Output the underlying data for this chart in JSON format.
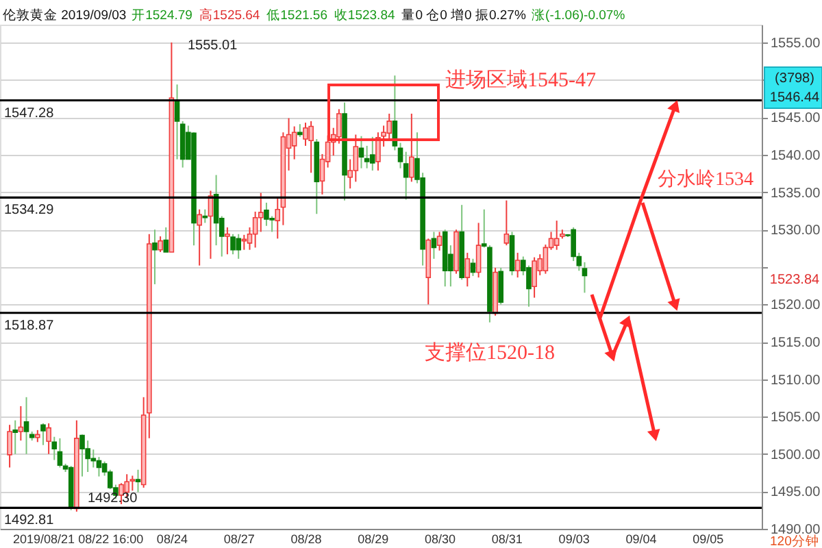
{
  "chart_data": {
    "type": "candlestick",
    "categories": [
      null,
      null,
      null,
      null,
      null,
      null,
      "2019/08/21",
      null,
      null,
      null,
      null,
      null,
      null,
      null,
      null,
      null,
      null,
      null,
      "08/22 16:00",
      null,
      null,
      null,
      null,
      null,
      null,
      null,
      null,
      null,
      null,
      "08/24",
      null,
      null,
      null,
      null,
      null,
      null,
      null,
      null,
      null,
      null,
      null,
      "08/27",
      null,
      null,
      null,
      null,
      null,
      null,
      null,
      null,
      null,
      null,
      null,
      "08/28",
      null,
      null,
      null,
      null,
      null,
      null,
      null,
      null,
      null,
      null,
      null,
      "08/29",
      null,
      null,
      null,
      null,
      null,
      null,
      null,
      null,
      null,
      null,
      null,
      "08/30",
      null,
      null,
      null,
      null,
      null,
      null,
      null,
      null,
      null,
      null,
      null,
      "08/31",
      null,
      null,
      null,
      null,
      null,
      null,
      null,
      null,
      null,
      null,
      null,
      "09/03",
      null,
      null,
      null,
      null,
      null,
      null,
      null,
      null,
      null,
      null,
      null,
      "09/04",
      null,
      null,
      null,
      null,
      null,
      null,
      null,
      null,
      null,
      null,
      null,
      "09/05",
      null,
      null,
      null,
      null,
      null,
      null,
      null,
      null
    ],
    "ohlc": [
      [
        1499.9,
        1503.9,
        1498.2,
        1503.0
      ],
      [
        1503.2,
        1504.5,
        1500.0,
        1502.9
      ],
      [
        1503.0,
        1506.4,
        1501.8,
        1503.6
      ],
      [
        1504.3,
        1507.6,
        1500.0,
        1503.0
      ],
      [
        1502.6,
        1503.0,
        1501.8,
        1502.2
      ],
      [
        1502.2,
        1503.2,
        1501.6,
        1502.6
      ],
      [
        1503.9,
        1504.1,
        1501.2,
        1503.1
      ],
      [
        1501.7,
        1504.1,
        1500.0,
        1503.5
      ],
      [
        1501.6,
        1502.3,
        1499.2,
        1500.7
      ],
      [
        1500.3,
        1502.1,
        1498.2,
        1498.5
      ],
      [
        1498.4,
        1498.7,
        1497.6,
        1498.0
      ],
      [
        1498.2,
        1498.4,
        1492.5,
        1492.85
      ],
      [
        1492.7,
        1504.5,
        1492.3,
        1502.1
      ],
      [
        1502.5,
        1502.6,
        1497.0,
        1500.7
      ],
      [
        1500.7,
        1501.8,
        1497.6,
        1499.4
      ],
      [
        1499.4,
        1500.6,
        1498.2,
        1499.1
      ],
      [
        1499.1,
        1499.6,
        1497.0,
        1498.2
      ],
      [
        1498.7,
        1499.0,
        1497.1,
        1497.6
      ],
      [
        1497.6,
        1497.9,
        1495.3,
        1495.5
      ],
      [
        1495.5,
        1495.9,
        1494.0,
        1494.5
      ],
      [
        1494.5,
        1496.1,
        1493.3,
        1495.9
      ],
      [
        1494.9,
        1497.3,
        1494.1,
        1496.3
      ],
      [
        1496.4,
        1497.1,
        1495.1,
        1496.6
      ],
      [
        1496.6,
        1497.9,
        1494.9,
        1496.3
      ],
      [
        1495.9,
        1507.6,
        1495.5,
        1505.2
      ],
      [
        1505.5,
        1529.4,
        1502.1,
        1528.1
      ],
      [
        1528.2,
        1530.0,
        1522.7,
        1527.3
      ],
      [
        1527.3,
        1529.1,
        1527.0,
        1528.5
      ],
      [
        1528.6,
        1530.3,
        1527.0,
        1527.0
      ],
      [
        1527.0,
        1555.01,
        1527.0,
        1547.6
      ],
      [
        1547.3,
        1549.4,
        1539.4,
        1544.5
      ],
      [
        1544.1,
        1544.5,
        1538.3,
        1539.4
      ],
      [
        1543.0,
        1543.9,
        1539.4,
        1539.4
      ],
      [
        1542.9,
        1543.0,
        1527.9,
        1530.9
      ],
      [
        1530.6,
        1532.7,
        1525.2,
        1532.0
      ],
      [
        1531.8,
        1532.7,
        1530.9,
        1531.6
      ],
      [
        1531.8,
        1535.2,
        1526.1,
        1534.5
      ],
      [
        1534.7,
        1537.3,
        1527.9,
        1530.9
      ],
      [
        1531.5,
        1531.8,
        1526.4,
        1529.1
      ],
      [
        1529.1,
        1530.3,
        1526.7,
        1529.4
      ],
      [
        1529.0,
        1529.4,
        1526.7,
        1527.3
      ],
      [
        1528.8,
        1529.4,
        1526.1,
        1527.3
      ],
      [
        1528.5,
        1529.3,
        1527.3,
        1528.7
      ],
      [
        1528.2,
        1530.3,
        1527.3,
        1529.4
      ],
      [
        1529.4,
        1532.4,
        1527.6,
        1531.6
      ],
      [
        1531.6,
        1534.9,
        1529.7,
        1532.3
      ],
      [
        1532.6,
        1533.6,
        1530.5,
        1531.4
      ],
      [
        1531.5,
        1531.8,
        1529.7,
        1531.3
      ],
      [
        1531.2,
        1534.3,
        1528.8,
        1532.7
      ],
      [
        1533.0,
        1543.0,
        1530.6,
        1542.4
      ],
      [
        1540.9,
        1544.9,
        1537.9,
        1542.7
      ],
      [
        1541.2,
        1543.8,
        1539.4,
        1543.0
      ],
      [
        1543.0,
        1544.1,
        1542.4,
        1542.7
      ],
      [
        1542.1,
        1544.3,
        1541.2,
        1543.6
      ],
      [
        1541.9,
        1544.5,
        1537.6,
        1543.8
      ],
      [
        1541.7,
        1542.1,
        1532.1,
        1536.4
      ],
      [
        1536.5,
        1540.1,
        1534.7,
        1539.4
      ],
      [
        1539.1,
        1542.6,
        1538.3,
        1541.7
      ],
      [
        1541.7,
        1543.6,
        1539.9,
        1542.7
      ],
      [
        1542.4,
        1546.1,
        1541.5,
        1545.5
      ],
      [
        1545.5,
        1547.0,
        1533.9,
        1537.3
      ],
      [
        1537.0,
        1539.4,
        1535.5,
        1537.9
      ],
      [
        1537.9,
        1542.7,
        1536.4,
        1541.1
      ],
      [
        1540.9,
        1542.5,
        1538.2,
        1539.7
      ],
      [
        1539.5,
        1541.2,
        1538.2,
        1539.1
      ],
      [
        1540.0,
        1542.4,
        1537.9,
        1538.9
      ],
      [
        1539.1,
        1543.0,
        1537.9,
        1542.3
      ],
      [
        1542.5,
        1543.9,
        1541.1,
        1543.0
      ],
      [
        1542.9,
        1545.5,
        1542.1,
        1544.5
      ],
      [
        1544.5,
        1550.6,
        1540.6,
        1541.2
      ],
      [
        1540.9,
        1541.6,
        1538.2,
        1539.1
      ],
      [
        1538.8,
        1540.4,
        1534.0,
        1537.0
      ],
      [
        1537.0,
        1545.5,
        1536.4,
        1539.7
      ],
      [
        1539.5,
        1543.0,
        1536.2,
        1536.7
      ],
      [
        1536.9,
        1537.6,
        1525.2,
        1527.4
      ],
      [
        1523.6,
        1528.8,
        1520.0,
        1528.6
      ],
      [
        1528.8,
        1529.7,
        1526.1,
        1527.6
      ],
      [
        1527.9,
        1529.7,
        1527.2,
        1529.1
      ],
      [
        1529.7,
        1530.0,
        1522.4,
        1524.5
      ],
      [
        1526.7,
        1527.9,
        1522.4,
        1524.5
      ],
      [
        1524.5,
        1530.0,
        1524.1,
        1529.7
      ],
      [
        1529.7,
        1533.3,
        1523.3,
        1523.6
      ],
      [
        1523.6,
        1526.9,
        1522.4,
        1526.1
      ],
      [
        1525.5,
        1526.1,
        1523.8,
        1524.3
      ],
      [
        1524.3,
        1530.9,
        1523.6,
        1527.9
      ],
      [
        1528.1,
        1532.7,
        1527.6,
        1527.8
      ],
      [
        1527.6,
        1527.9,
        1517.6,
        1519.1
      ],
      [
        1518.8,
        1524.9,
        1518.5,
        1524.3
      ],
      [
        1524.4,
        1524.9,
        1520.0,
        1520.3
      ],
      [
        1528.2,
        1533.9,
        1527.9,
        1529.4
      ],
      [
        1529.2,
        1529.7,
        1523.9,
        1524.5
      ],
      [
        1524.5,
        1526.9,
        1523.6,
        1525.9
      ],
      [
        1525.9,
        1526.4,
        1523.9,
        1524.5
      ],
      [
        1524.9,
        1525.2,
        1519.7,
        1522.1
      ],
      [
        1522.4,
        1526.3,
        1520.9,
        1525.8
      ],
      [
        1524.5,
        1526.7,
        1523.9,
        1526.1
      ],
      [
        1524.5,
        1528.0,
        1524.1,
        1527.6
      ],
      [
        1527.6,
        1529.7,
        1527.3,
        1528.8
      ],
      [
        1527.9,
        1531.2,
        1527.3,
        1528.8
      ],
      [
        1529.1,
        1530.0,
        1528.8,
        1529.4
      ],
      [
        1529.3,
        1529.4,
        1529.0,
        1529.2
      ],
      [
        1530.0,
        1530.3,
        1525.8,
        1526.4
      ],
      [
        1526.4,
        1526.9,
        1524.5,
        1525.2
      ],
      [
        1524.79,
        1525.64,
        1521.56,
        1523.84
      ],
      null,
      null,
      null,
      null,
      null,
      null,
      null,
      null,
      null,
      null,
      null,
      null,
      null,
      null,
      null,
      null,
      null,
      null,
      null,
      null,
      null,
      null,
      null,
      null,
      null,
      null,
      null,
      null,
      null,
      null
    ],
    "ylim": [
      1490,
      1557.4
    ],
    "yticks": [
      {
        "value": 1490,
        "label": "1490.00"
      },
      {
        "value": 1495,
        "label": "1495.00"
      },
      {
        "value": 1500,
        "label": "1500.00"
      },
      {
        "value": 1505,
        "label": "1505.00"
      },
      {
        "value": 1510,
        "label": "1510.00"
      },
      {
        "value": 1515,
        "label": "1515.00"
      },
      {
        "value": 1520,
        "label": "1520.00"
      },
      {
        "value": 1525,
        "label": null
      },
      {
        "value": 1530,
        "label": "1530.00"
      },
      {
        "value": 1535,
        "label": "1535.00"
      },
      {
        "value": 1540,
        "label": "1540.00"
      },
      {
        "value": 1545,
        "label": "1545.00"
      },
      {
        "value": 1550,
        "label": null
      },
      {
        "value": 1555,
        "label": "1555.00"
      }
    ],
    "grid": "y",
    "ref_lines": [
      {
        "axis": "y",
        "value": 1547.28,
        "label": "1547.28",
        "color": "#000000"
      },
      {
        "axis": "y",
        "value": 1534.29,
        "label": "1534.29",
        "color": "#000000"
      },
      {
        "axis": "y",
        "value": 1518.87,
        "label": "1518.87",
        "color": "#000000"
      },
      {
        "axis": "y",
        "value": 1492.81,
        "label": "1492.81",
        "color": "#000000"
      }
    ],
    "annotations": [
      "伦敦黄金 2019/09/03",
      "开1524.79",
      "高1525.64",
      "低1521.56",
      "收1523.84",
      "量0 仓0 增0 振0.27%",
      "涨(-1.06)-0.07%",
      "1555.01",
      {
        "text": "1492.30",
        "y": 1492.3
      },
      "进场区域1545-47",
      {
        "text": "分水岭1534",
        "y": 1534
      },
      "支撑位1520-18",
      "120分钟",
      "(3798)",
      "1546.44",
      "1523.84"
    ]
  }
}
